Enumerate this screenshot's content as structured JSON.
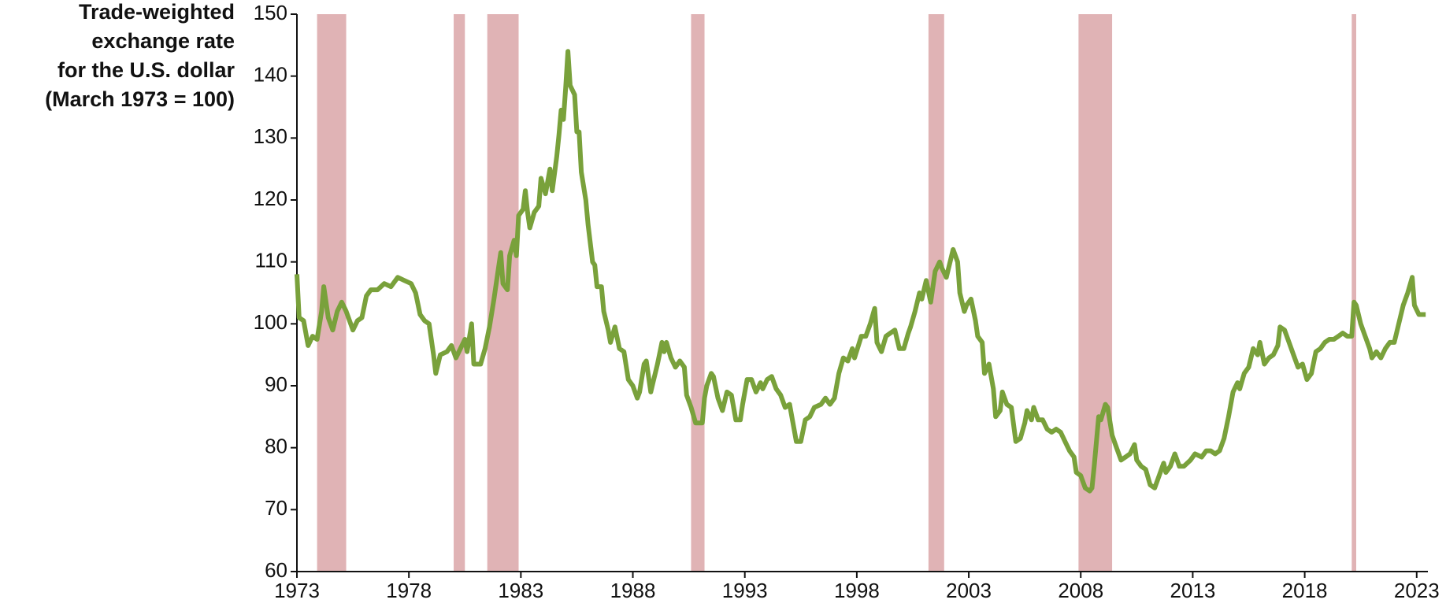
{
  "chart_data": {
    "type": "line",
    "ylabel": [
      "Trade-weighted",
      "exchange rate",
      "for the U.S. dollar",
      "(March 1973 = 100)"
    ],
    "xlim": [
      1973,
      2023.5
    ],
    "xticks": [
      1973,
      1978,
      1983,
      1988,
      1993,
      1998,
      2003,
      2008,
      2013,
      2018,
      2023
    ],
    "ylim": [
      60,
      150
    ],
    "yticks": [
      60,
      70,
      80,
      90,
      100,
      110,
      120,
      130,
      140,
      150
    ],
    "grid": false,
    "recessions": {
      "color": "#e0b3b5",
      "spans": [
        [
          1973.9,
          1975.2
        ],
        [
          1980.0,
          1980.5
        ],
        [
          1981.5,
          1982.9
        ],
        [
          1990.6,
          1991.2
        ],
        [
          2001.2,
          2001.9
        ],
        [
          2007.9,
          2009.4
        ],
        [
          2020.1,
          2020.3
        ]
      ]
    },
    "series": [
      {
        "color": "#79a13b",
        "x": [
          1973.0,
          1973.1,
          1973.3,
          1973.5,
          1973.7,
          1973.9,
          1974.1,
          1974.2,
          1974.4,
          1974.6,
          1974.8,
          1975.0,
          1975.2,
          1975.5,
          1975.7,
          1975.9,
          1976.1,
          1976.3,
          1976.6,
          1976.9,
          1977.2,
          1977.5,
          1977.8,
          1978.1,
          1978.3,
          1978.5,
          1978.7,
          1978.9,
          1979.1,
          1979.2,
          1979.4,
          1979.7,
          1979.9,
          1980.1,
          1980.3,
          1980.5,
          1980.6,
          1980.8,
          1980.9,
          1981.2,
          1981.4,
          1981.6,
          1981.8,
          1982.0,
          1982.1,
          1982.2,
          1982.4,
          1982.5,
          1982.7,
          1982.8,
          1982.9,
          1983.1,
          1983.2,
          1983.3,
          1983.4,
          1983.6,
          1983.8,
          1983.9,
          1984.1,
          1984.3,
          1984.4,
          1984.6,
          1984.7,
          1984.8,
          1984.9,
          1985.0,
          1985.1,
          1985.2,
          1985.4,
          1985.5,
          1985.6,
          1985.7,
          1985.9,
          1986.0,
          1986.2,
          1986.3,
          1986.4,
          1986.6,
          1986.7,
          1986.9,
          1987.0,
          1987.2,
          1987.4,
          1987.6,
          1987.8,
          1988.0,
          1988.2,
          1988.3,
          1988.5,
          1988.6,
          1988.8,
          1988.9,
          1989.1,
          1989.3,
          1989.4,
          1989.5,
          1989.7,
          1989.9,
          1990.1,
          1990.3,
          1990.4,
          1990.6,
          1990.8,
          1991.1,
          1991.2,
          1991.3,
          1991.5,
          1991.6,
          1991.8,
          1992.0,
          1992.2,
          1992.4,
          1992.6,
          1992.8,
          1992.9,
          1993.1,
          1993.3,
          1993.5,
          1993.7,
          1993.8,
          1994.0,
          1994.2,
          1994.4,
          1994.6,
          1994.8,
          1995.0,
          1995.1,
          1995.3,
          1995.5,
          1995.7,
          1995.9,
          1996.1,
          1996.4,
          1996.6,
          1996.8,
          1997.0,
          1997.2,
          1997.4,
          1997.6,
          1997.8,
          1997.9,
          1998.2,
          1998.4,
          1998.6,
          1998.8,
          1998.9,
          1999.1,
          1999.3,
          1999.5,
          1999.7,
          1999.9,
          2000.1,
          2000.3,
          2000.4,
          2000.6,
          2000.8,
          2000.9,
          2001.1,
          2001.3,
          2001.5,
          2001.7,
          2001.8,
          2002.0,
          2002.2,
          2002.3,
          2002.5,
          2002.6,
          2002.8,
          2002.9,
          2003.1,
          2003.3,
          2003.4,
          2003.6,
          2003.7,
          2003.9,
          2004.1,
          2004.2,
          2004.4,
          2004.5,
          2004.7,
          2004.9,
          2005.1,
          2005.3,
          2005.5,
          2005.6,
          2005.8,
          2005.9,
          2006.1,
          2006.3,
          2006.5,
          2006.7,
          2006.9,
          2007.1,
          2007.3,
          2007.5,
          2007.7,
          2007.8,
          2008.0,
          2008.2,
          2008.4,
          2008.5,
          2008.6,
          2008.8,
          2008.9,
          2009.1,
          2009.2,
          2009.4,
          2009.6,
          2009.8,
          2010.0,
          2010.2,
          2010.4,
          2010.5,
          2010.7,
          2010.9,
          2011.1,
          2011.3,
          2011.5,
          2011.7,
          2011.8,
          2012.0,
          2012.2,
          2012.4,
          2012.6,
          2012.9,
          2013.1,
          2013.4,
          2013.6,
          2013.8,
          2014.0,
          2014.2,
          2014.4,
          2014.6,
          2014.8,
          2015.0,
          2015.1,
          2015.3,
          2015.5,
          2015.7,
          2015.9,
          2016.0,
          2016.2,
          2016.4,
          2016.6,
          2016.8,
          2016.9,
          2017.1,
          2017.3,
          2017.5,
          2017.7,
          2017.9,
          2018.1,
          2018.3,
          2018.5,
          2018.7,
          2018.9,
          2019.1,
          2019.3,
          2019.5,
          2019.7,
          2019.9,
          2020.1,
          2020.2,
          2020.3,
          2020.5,
          2020.7,
          2020.9,
          2021.0,
          2021.2,
          2021.4,
          2021.6,
          2021.8,
          2022.0,
          2022.2,
          2022.4,
          2022.6,
          2022.8,
          2022.9,
          2023.1,
          2023.3,
          2023.4
        ],
        "values": [
          108,
          101,
          100.5,
          96.5,
          98,
          97.5,
          102,
          106,
          101,
          99,
          102,
          103.5,
          102,
          99,
          100.5,
          101,
          104.5,
          105.5,
          105.5,
          106.5,
          106,
          107.5,
          107,
          106.5,
          105,
          101.5,
          100.5,
          100,
          95,
          92,
          95,
          95.5,
          96.5,
          94.5,
          96,
          97.5,
          95.5,
          100,
          93.5,
          93.5,
          96,
          99.5,
          104,
          109,
          111.5,
          106.5,
          105.5,
          111,
          113.5,
          111,
          117.5,
          118.5,
          121.5,
          118,
          115.5,
          118,
          119,
          123.5,
          121,
          125,
          121.5,
          127,
          130.5,
          134.5,
          133,
          138,
          144,
          138.5,
          137,
          131,
          131,
          124.5,
          120,
          116,
          110,
          109.5,
          106,
          106,
          102,
          99,
          97,
          99.5,
          96,
          95.5,
          91,
          90,
          88,
          89,
          93.5,
          94,
          89,
          90.5,
          93.5,
          97,
          95.5,
          97,
          94.5,
          93,
          94,
          93,
          88.5,
          86.5,
          84,
          84,
          88,
          90,
          92,
          91.5,
          88,
          86,
          89,
          88.5,
          84.5,
          84.5,
          87,
          91,
          91,
          89,
          90.5,
          89.5,
          91,
          91.5,
          89.5,
          88.5,
          86.5,
          87,
          85,
          81,
          81,
          84.5,
          85,
          86.5,
          87,
          88,
          87,
          88,
          92,
          94.5,
          94,
          96,
          94.5,
          98,
          98,
          100,
          102.5,
          97,
          95.5,
          98,
          98.5,
          99,
          96,
          96,
          98.5,
          99.5,
          102,
          105,
          104,
          107,
          103.5,
          108.5,
          110,
          109,
          107.5,
          110.5,
          112,
          110,
          105,
          102,
          103,
          104,
          100.5,
          98,
          97,
          92,
          93.5,
          89.5,
          85,
          86,
          89,
          87,
          86.5,
          81,
          81.5,
          84,
          86,
          84.5,
          86.5,
          84.5,
          84.5,
          83,
          82.5,
          83,
          82.5,
          81,
          79.5,
          78.5,
          76,
          75.5,
          73.5,
          73,
          73.5,
          77,
          85,
          84.5,
          87,
          86.5,
          82,
          80,
          78,
          78.5,
          79,
          80.5,
          78,
          77,
          76.5,
          74,
          73.5,
          75.5,
          77.5,
          76,
          77,
          79,
          77,
          77,
          78,
          79,
          78.5,
          79.5,
          79.5,
          79,
          79.5,
          81.5,
          85,
          89,
          90.5,
          89.5,
          92,
          93,
          96,
          95,
          97,
          93.5,
          94.5,
          95,
          96.5,
          99.5,
          99,
          97,
          95,
          93,
          93.5,
          91,
          92,
          95.5,
          96,
          97,
          97.5,
          97.5,
          98,
          98.5,
          98,
          98,
          103.5,
          103,
          100,
          98,
          96,
          94.5,
          95.5,
          94.5,
          96,
          97,
          97,
          100,
          103,
          105,
          107.5,
          103,
          101.5,
          101.5,
          101.5
        ]
      }
    ]
  }
}
